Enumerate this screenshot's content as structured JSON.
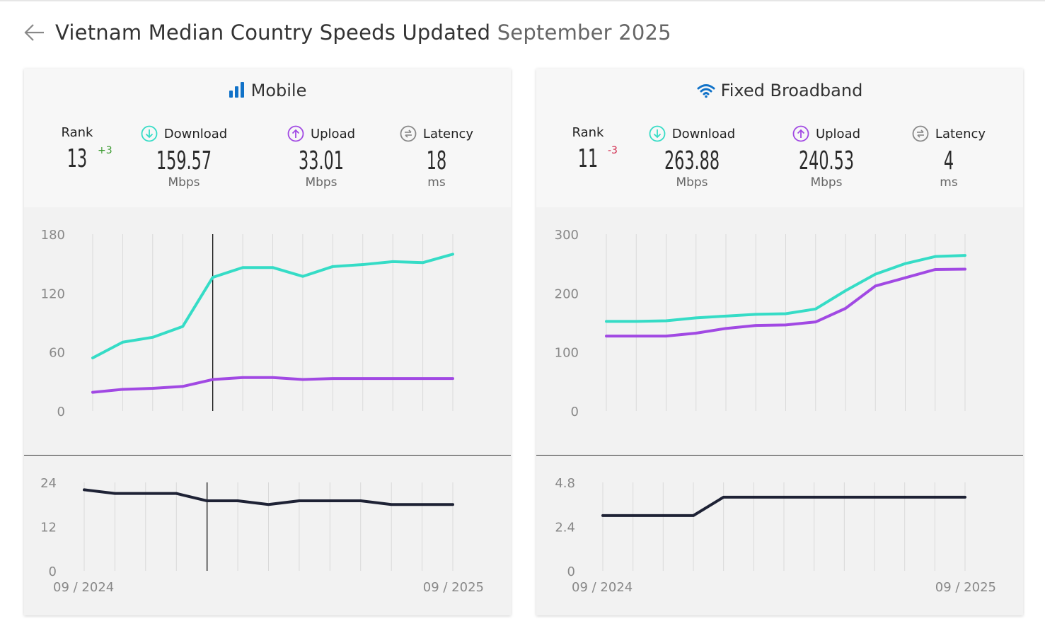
{
  "header": {
    "title_main": "Vietnam Median Country Speeds Updated",
    "title_date": "September 2025"
  },
  "colors": {
    "download": "#35dcc6",
    "upload": "#a149e3",
    "latency": "#1e2235",
    "icon_blue": "#1172c8",
    "rank_up": "#3a9a2f",
    "rank_down": "#d0264a"
  },
  "mobile": {
    "title": "Mobile",
    "rank_label": "Rank",
    "rank": "13",
    "rank_change": "+3",
    "download_label": "Download",
    "download": "159.57",
    "download_unit": "Mbps",
    "upload_label": "Upload",
    "upload": "33.01",
    "upload_unit": "Mbps",
    "latency_label": "Latency",
    "latency": "18",
    "latency_unit": "ms"
  },
  "fixed": {
    "title": "Fixed Broadband",
    "rank_label": "Rank",
    "rank": "11",
    "rank_change": "-3",
    "download_label": "Download",
    "download": "263.88",
    "download_unit": "Mbps",
    "upload_label": "Upload",
    "upload": "240.53",
    "upload_unit": "Mbps",
    "latency_label": "Latency",
    "latency": "4",
    "latency_unit": "ms"
  },
  "chart_data": [
    {
      "id": "mobile-speed",
      "type": "line",
      "x": [
        "09/2024",
        "10/2024",
        "11/2024",
        "12/2024",
        "01/2025",
        "02/2025",
        "03/2025",
        "04/2025",
        "05/2025",
        "06/2025",
        "07/2025",
        "08/2025",
        "09/2025"
      ],
      "ylim": [
        0,
        180
      ],
      "yticks": [
        0,
        60,
        120,
        180
      ],
      "series": [
        {
          "name": "Download",
          "values": [
            54,
            70,
            75,
            86,
            136,
            146,
            146,
            137,
            147,
            149,
            152,
            151,
            159.57
          ]
        },
        {
          "name": "Upload",
          "values": [
            19,
            22,
            23,
            25,
            32,
            34,
            34,
            32,
            33,
            33,
            33,
            33,
            33.01
          ]
        }
      ],
      "hover_index": 4
    },
    {
      "id": "mobile-latency",
      "type": "line",
      "x": [
        "09/2024",
        "10/2024",
        "11/2024",
        "12/2024",
        "01/2025",
        "02/2025",
        "03/2025",
        "04/2025",
        "05/2025",
        "06/2025",
        "07/2025",
        "08/2025",
        "09/2025"
      ],
      "ylim": [
        0,
        24
      ],
      "yticks": [
        0,
        12,
        24
      ],
      "series": [
        {
          "name": "Latency",
          "values": [
            22,
            21,
            21,
            21,
            19,
            19,
            18,
            19,
            19,
            19,
            18,
            18,
            18
          ]
        }
      ],
      "hover_index": 4,
      "x_first_label": "09 / 2024",
      "x_last_label": "09 / 2025"
    },
    {
      "id": "fixed-speed",
      "type": "line",
      "x": [
        "09/2024",
        "10/2024",
        "11/2024",
        "12/2024",
        "01/2025",
        "02/2025",
        "03/2025",
        "04/2025",
        "05/2025",
        "06/2025",
        "07/2025",
        "08/2025",
        "09/2025"
      ],
      "ylim": [
        0,
        300
      ],
      "yticks": [
        0,
        100,
        200,
        300
      ],
      "series": [
        {
          "name": "Download",
          "values": [
            152,
            152,
            153,
            158,
            161,
            164,
            165,
            173,
            204,
            232,
            250,
            262,
            263.88
          ]
        },
        {
          "name": "Upload",
          "values": [
            127,
            127,
            127,
            132,
            140,
            145,
            146,
            151,
            174,
            212,
            226,
            240,
            240.53
          ]
        }
      ]
    },
    {
      "id": "fixed-latency",
      "type": "line",
      "x": [
        "09/2024",
        "10/2024",
        "11/2024",
        "12/2024",
        "01/2025",
        "02/2025",
        "03/2025",
        "04/2025",
        "05/2025",
        "06/2025",
        "07/2025",
        "08/2025",
        "09/2025"
      ],
      "ylim": [
        0,
        4.8
      ],
      "yticks": [
        0,
        2.4,
        4.8
      ],
      "series": [
        {
          "name": "Latency",
          "values": [
            3,
            3,
            3,
            3,
            4,
            4,
            4,
            4,
            4,
            4,
            4,
            4,
            4
          ]
        }
      ],
      "x_first_label": "09 / 2024",
      "x_last_label": "09 / 2025"
    }
  ]
}
